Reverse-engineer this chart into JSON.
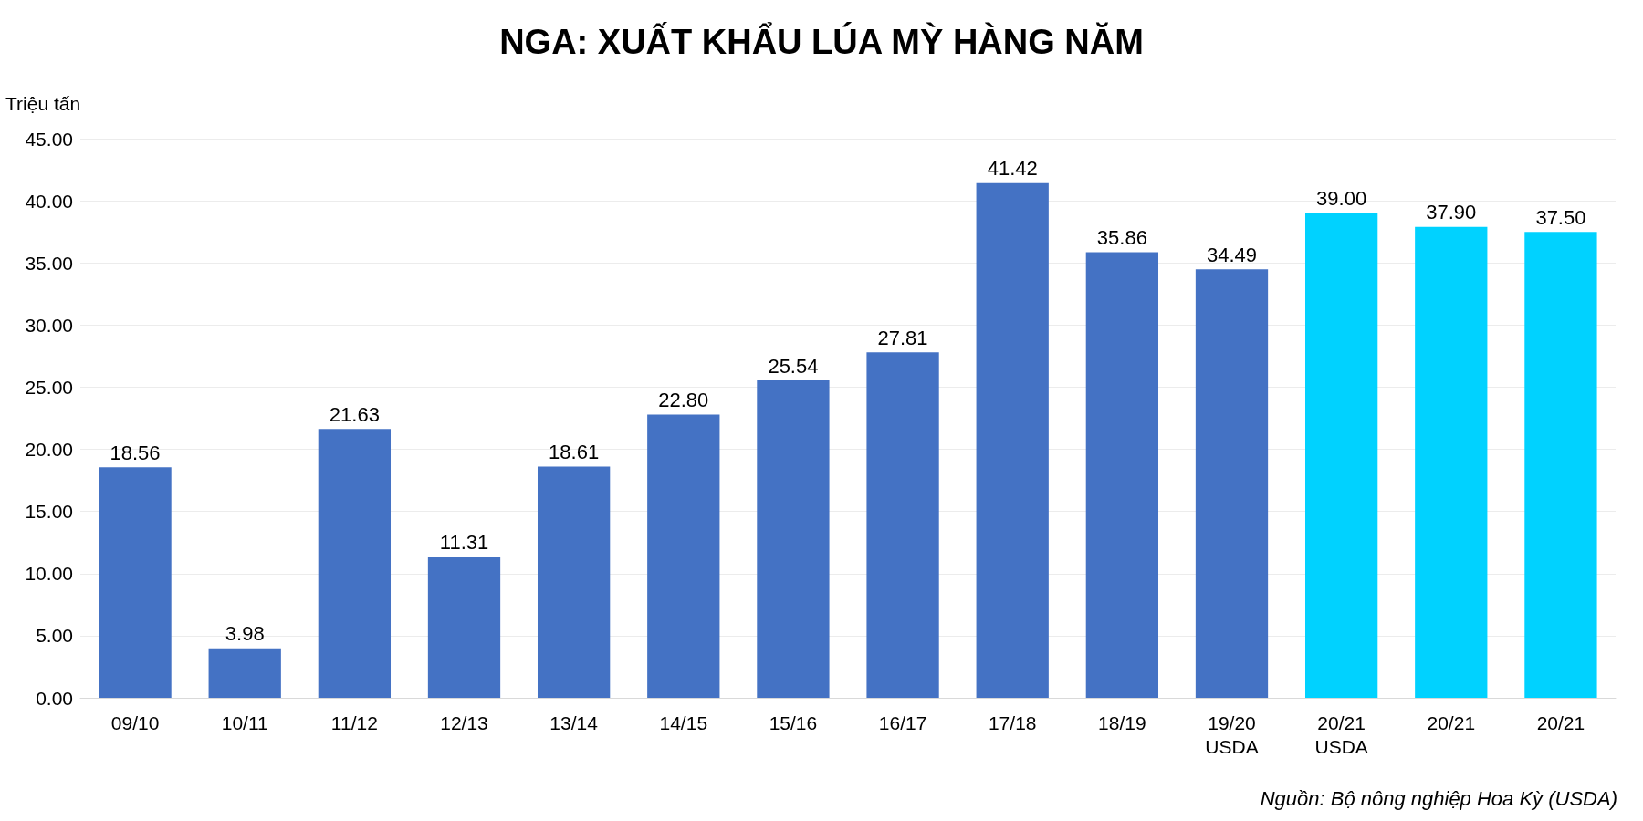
{
  "chart_data": {
    "type": "bar",
    "title": "NGA: XUẤT KHẨU LÚA MỲ HÀNG NĂM",
    "ylabel": "Triệu tấn",
    "categories": [
      "09/10",
      "10/11",
      "11/12",
      "12/13",
      "13/14",
      "14/15",
      "15/16",
      "16/17",
      "17/18",
      "18/19",
      "19/20\nUSDA",
      "20/21\nUSDA",
      "20/21",
      "20/21"
    ],
    "values": [
      18.56,
      3.98,
      21.63,
      11.31,
      18.61,
      22.8,
      25.54,
      27.81,
      41.42,
      35.86,
      34.49,
      39.0,
      37.9,
      37.5
    ],
    "value_labels": [
      "18.56",
      "3.98",
      "21.63",
      "11.31",
      "18.61",
      "22.80",
      "25.54",
      "27.81",
      "41.42",
      "35.86",
      "34.49",
      "39.00",
      "37.90",
      "37.50"
    ],
    "colors": [
      "#4472c4",
      "#4472c4",
      "#4472c4",
      "#4472c4",
      "#4472c4",
      "#4472c4",
      "#4472c4",
      "#4472c4",
      "#4472c4",
      "#4472c4",
      "#4472c4",
      "#00d2ff",
      "#00d2ff",
      "#00d2ff"
    ],
    "ylim": [
      0,
      45
    ],
    "yticks": [
      {
        "value": 0,
        "label": "0.00"
      },
      {
        "value": 5,
        "label": "5.00"
      },
      {
        "value": 10,
        "label": "10.00"
      },
      {
        "value": 15,
        "label": "15.00"
      },
      {
        "value": 20,
        "label": "20.00"
      },
      {
        "value": 25,
        "label": "25.00"
      },
      {
        "value": 30,
        "label": "30.00"
      },
      {
        "value": 35,
        "label": "35.00"
      },
      {
        "value": 40,
        "label": "40.00"
      },
      {
        "value": 45,
        "label": "45.00"
      }
    ],
    "grid": "y",
    "annotations": [
      "Nguồn: Bộ nông nghiệp Hoa Kỳ (USDA)"
    ]
  }
}
